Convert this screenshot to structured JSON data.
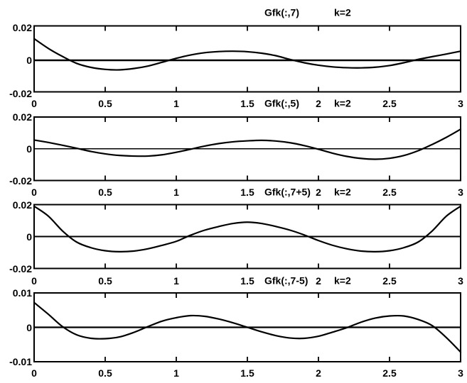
{
  "chart_data": [
    {
      "type": "line",
      "title": "Gfk(:,7)",
      "annotation": "k=2",
      "xlim": [
        0,
        3
      ],
      "ylim": [
        -0.02,
        0.02
      ],
      "xticks": [
        "0",
        "0.5",
        "1",
        "1.5",
        "2",
        "2.5",
        "3"
      ],
      "xtick_values": [
        0,
        0.5,
        1,
        1.5,
        2,
        2.5,
        3
      ],
      "yticks": [
        "0.02",
        "0",
        "-0.02"
      ],
      "ytick_values": [
        0.02,
        0,
        -0.02
      ],
      "grid": false,
      "zero_line": true,
      "x_start": 0,
      "x_step": 0.1,
      "y": [
        0.0131,
        0.0072,
        0.0023,
        -0.0019,
        -0.0043,
        -0.0055,
        -0.0058,
        -0.005,
        -0.0035,
        -0.0012,
        0.0012,
        0.0032,
        0.0046,
        0.0053,
        0.0055,
        0.0052,
        0.0043,
        0.0028,
        0.0005,
        -0.0015,
        -0.003,
        -0.004,
        -0.0045,
        -0.0046,
        -0.0042,
        -0.0032,
        -0.0015,
        0.0005,
        0.0022,
        0.0038,
        0.0055
      ]
    },
    {
      "type": "line",
      "title": "Gfk(:,5)",
      "annotation": "k=2",
      "xlim": [
        0,
        3
      ],
      "ylim": [
        -0.02,
        0.02
      ],
      "xticks": [
        "0",
        "0.5",
        "1",
        "1.5",
        "2",
        "2.5",
        "3"
      ],
      "xtick_values": [
        0,
        0.5,
        1,
        1.5,
        2,
        2.5,
        3
      ],
      "yticks": [
        "0.02",
        "0",
        "-0.02"
      ],
      "ytick_values": [
        0.02,
        0,
        -0.02
      ],
      "grid": false,
      "zero_line": true,
      "x_start": 0,
      "x_step": 0.1,
      "y": [
        0.0055,
        0.004,
        0.0022,
        0.0003,
        -0.0017,
        -0.0032,
        -0.0042,
        -0.0046,
        -0.0046,
        -0.0038,
        -0.0022,
        -0.0003,
        0.0017,
        0.0033,
        0.0044,
        0.005,
        0.0053,
        0.0049,
        0.0038,
        0.002,
        -0.0003,
        -0.0028,
        -0.0048,
        -0.0061,
        -0.0066,
        -0.006,
        -0.0043,
        -0.0013,
        0.0027,
        0.0072,
        0.0123
      ]
    },
    {
      "type": "line",
      "title": "Gfk(:,7+5)",
      "annotation": "k=2",
      "xlim": [
        0,
        3
      ],
      "ylim": [
        -0.02,
        0.02
      ],
      "xticks": [
        "0",
        "0.5",
        "1",
        "1.5",
        "2",
        "2.5",
        "3"
      ],
      "xtick_values": [
        0,
        0.5,
        1,
        1.5,
        2,
        2.5,
        3
      ],
      "yticks": [
        "0.02",
        "0",
        "-0.02"
      ],
      "ytick_values": [
        0.02,
        0,
        -0.02
      ],
      "grid": false,
      "zero_line": true,
      "x_start": 0,
      "x_step": 0.1,
      "y": [
        0.019,
        0.0128,
        0.0035,
        -0.0035,
        -0.007,
        -0.0089,
        -0.0095,
        -0.0091,
        -0.0077,
        -0.0055,
        -0.003,
        0.0008,
        0.004,
        0.0063,
        0.0082,
        0.009,
        0.0082,
        0.0063,
        0.004,
        0.001,
        -0.0025,
        -0.0055,
        -0.0077,
        -0.0091,
        -0.0095,
        -0.0089,
        -0.007,
        -0.0035,
        0.0035,
        0.0128,
        0.019
      ]
    },
    {
      "type": "line",
      "title": "Gfk(:,7-5)",
      "annotation": "k=2",
      "xlim": [
        0,
        3
      ],
      "ylim": [
        -0.01,
        0.01
      ],
      "xticks": [
        "0",
        "0.5",
        "1",
        "1.5",
        "2",
        "2.5",
        "3"
      ],
      "xtick_values": [
        0,
        0.5,
        1,
        1.5,
        2,
        2.5,
        3
      ],
      "yticks": [
        "0.01",
        "0",
        "-0.01"
      ],
      "ytick_values": [
        0.01,
        0,
        -0.01
      ],
      "grid": false,
      "zero_line": true,
      "x_start": 0,
      "x_step": 0.1,
      "y": [
        0.0072,
        0.0038,
        0.0002,
        -0.0022,
        -0.0032,
        -0.0033,
        -0.0028,
        -0.0015,
        0.0002,
        0.0018,
        0.0028,
        0.0034,
        0.0032,
        0.0024,
        0.0013,
        0.0,
        -0.0013,
        -0.0024,
        -0.0031,
        -0.0032,
        -0.0026,
        -0.0014,
        -0.0001,
        0.0015,
        0.0027,
        0.0033,
        0.0033,
        0.0023,
        0.0005,
        -0.003,
        -0.0072
      ]
    }
  ],
  "style": {
    "ink_color": "#000000",
    "background_color": "#ffffff"
  }
}
